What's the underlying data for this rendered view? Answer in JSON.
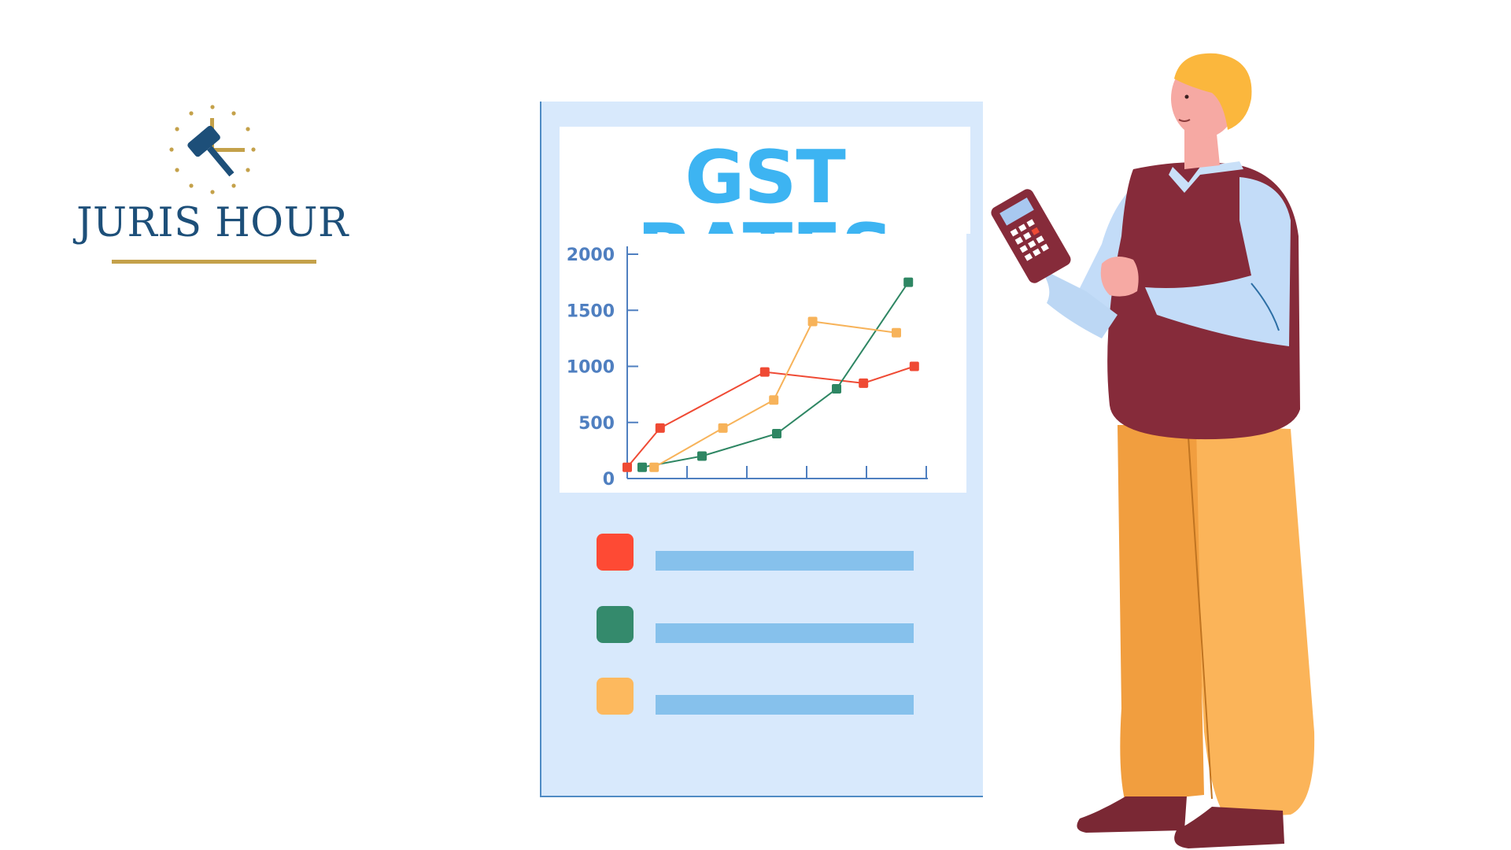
{
  "logo": {
    "text": "JURIS HOUR",
    "icon": "gavel-clock-icon",
    "text_color": "#1d4f79",
    "gold_color": "#c4a14a"
  },
  "panel": {
    "title": "GST RATES",
    "title_color": "#3db4f2"
  },
  "chart_data": {
    "type": "line",
    "yticks": [
      "0",
      "500",
      "1000",
      "1500",
      "2000"
    ],
    "ylim": [
      0,
      2000
    ],
    "x": [
      0,
      1,
      2,
      3,
      4,
      5
    ],
    "series": [
      {
        "color": "#ef4a34",
        "points": [
          [
            0,
            100
          ],
          [
            0.55,
            450
          ],
          [
            2.3,
            950
          ],
          [
            3.95,
            850
          ],
          [
            4.8,
            1000
          ]
        ]
      },
      {
        "color": "#2e8663",
        "points": [
          [
            0.25,
            100
          ],
          [
            1.25,
            200
          ],
          [
            2.5,
            400
          ],
          [
            3.5,
            800
          ],
          [
            4.7,
            1750
          ]
        ]
      },
      {
        "color": "#f7b35a",
        "points": [
          [
            0.45,
            100
          ],
          [
            1.6,
            450
          ],
          [
            2.45,
            700
          ],
          [
            3.1,
            1400
          ],
          [
            4.5,
            1300
          ]
        ]
      }
    ]
  },
  "legend": [
    {
      "color": "#fe4a34"
    },
    {
      "color": "#348a6c"
    },
    {
      "color": "#fdb95e"
    }
  ],
  "person": {
    "icon": "man-holding-calculator-illustration",
    "calculator_icon": "calculator-icon"
  }
}
